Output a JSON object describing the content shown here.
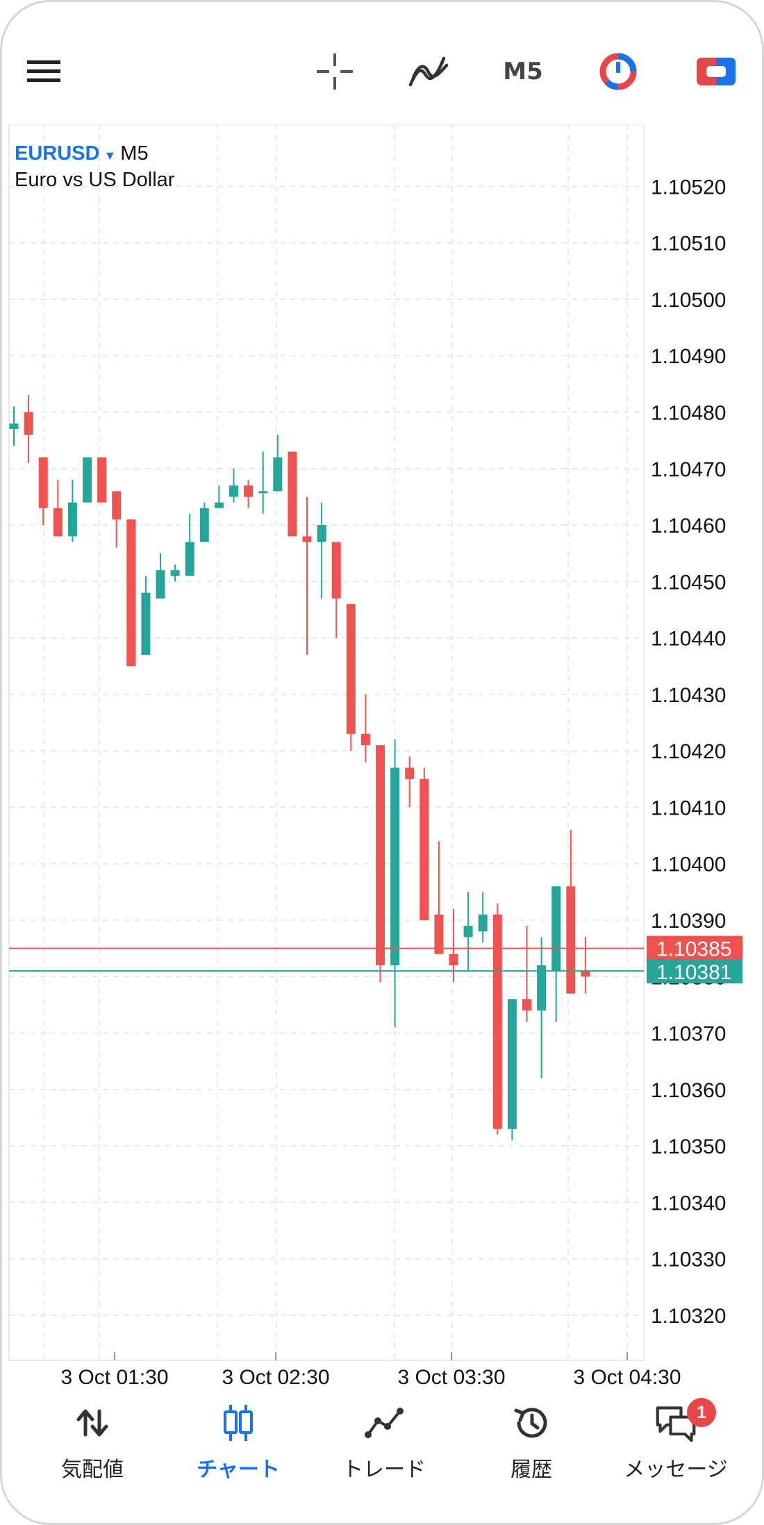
{
  "toolbar": {
    "menu_icon": "hamburger-menu-icon",
    "crosshair_icon": "crosshair-icon",
    "indicators_icon": "indicator-wave-icon",
    "timeframe": "M5",
    "timer_icon": "clock-pie-icon",
    "trade_icon": "one-click-trade-icon"
  },
  "chart": {
    "symbol": "EURUSD",
    "timeframe": "M5",
    "description": "Euro vs US Dollar",
    "ask_price": "1.10385",
    "bid_price": "1.10381",
    "colors": {
      "bull": "#26a69a",
      "bear": "#ef5350",
      "grid": "#e3e3e3"
    }
  },
  "chart_data": {
    "type": "candlestick",
    "ylim": [
      1.10312,
      1.10531
    ],
    "price_ticks": [
      "1.10520",
      "1.10510",
      "1.10500",
      "1.10490",
      "1.10480",
      "1.10470",
      "1.10460",
      "1.10450",
      "1.10440",
      "1.10430",
      "1.10420",
      "1.10410",
      "1.10400",
      "1.10390",
      "1.10380",
      "1.10370",
      "1.10360",
      "1.10350",
      "1.10340",
      "1.10330",
      "1.10320"
    ],
    "time_ticks": [
      "3 Oct 01:30",
      "3 Oct 02:30",
      "3 Oct 03:30",
      "3 Oct 04:30"
    ],
    "ask": 1.10385,
    "bid": 1.10381,
    "candles": [
      {
        "o": 1.10477,
        "h": 1.10481,
        "l": 1.10474,
        "c": 1.10478
      },
      {
        "o": 1.1048,
        "h": 1.10483,
        "l": 1.10471,
        "c": 1.10476
      },
      {
        "o": 1.10472,
        "h": 1.10472,
        "l": 1.1046,
        "c": 1.10463
      },
      {
        "o": 1.10463,
        "h": 1.10468,
        "l": 1.10458,
        "c": 1.10458
      },
      {
        "o": 1.10458,
        "h": 1.10468,
        "l": 1.10457,
        "c": 1.10464
      },
      {
        "o": 1.10464,
        "h": 1.10472,
        "l": 1.10464,
        "c": 1.10472
      },
      {
        "o": 1.10472,
        "h": 1.10472,
        "l": 1.10464,
        "c": 1.10464
      },
      {
        "o": 1.10466,
        "h": 1.10466,
        "l": 1.10456,
        "c": 1.10461
      },
      {
        "o": 1.10461,
        "h": 1.10461,
        "l": 1.10435,
        "c": 1.10435
      },
      {
        "o": 1.10437,
        "h": 1.10451,
        "l": 1.10437,
        "c": 1.10448
      },
      {
        "o": 1.10447,
        "h": 1.10455,
        "l": 1.10447,
        "c": 1.10452
      },
      {
        "o": 1.10451,
        "h": 1.10453,
        "l": 1.1045,
        "c": 1.10452
      },
      {
        "o": 1.10451,
        "h": 1.10462,
        "l": 1.10451,
        "c": 1.10457
      },
      {
        "o": 1.10457,
        "h": 1.10464,
        "l": 1.10457,
        "c": 1.10463
      },
      {
        "o": 1.10463,
        "h": 1.10467,
        "l": 1.10463,
        "c": 1.10464
      },
      {
        "o": 1.10465,
        "h": 1.1047,
        "l": 1.10464,
        "c": 1.10467
      },
      {
        "o": 1.10467,
        "h": 1.10468,
        "l": 1.10463,
        "c": 1.10465
      },
      {
        "o": 1.10466,
        "h": 1.10473,
        "l": 1.10462,
        "c": 1.10466
      },
      {
        "o": 1.10466,
        "h": 1.10476,
        "l": 1.10466,
        "c": 1.10472
      },
      {
        "o": 1.10473,
        "h": 1.10473,
        "l": 1.10458,
        "c": 1.10458
      },
      {
        "o": 1.10458,
        "h": 1.10465,
        "l": 1.10437,
        "c": 1.10457
      },
      {
        "o": 1.10457,
        "h": 1.10464,
        "l": 1.10447,
        "c": 1.1046
      },
      {
        "o": 1.10457,
        "h": 1.10457,
        "l": 1.1044,
        "c": 1.10447
      },
      {
        "o": 1.10446,
        "h": 1.10446,
        "l": 1.1042,
        "c": 1.10423
      },
      {
        "o": 1.10423,
        "h": 1.1043,
        "l": 1.10418,
        "c": 1.10421
      },
      {
        "o": 1.10421,
        "h": 1.10421,
        "l": 1.10379,
        "c": 1.10382
      },
      {
        "o": 1.10382,
        "h": 1.10422,
        "l": 1.10371,
        "c": 1.10417
      },
      {
        "o": 1.10417,
        "h": 1.10419,
        "l": 1.1041,
        "c": 1.10415
      },
      {
        "o": 1.10415,
        "h": 1.10417,
        "l": 1.1039,
        "c": 1.1039
      },
      {
        "o": 1.10391,
        "h": 1.10404,
        "l": 1.10384,
        "c": 1.10384
      },
      {
        "o": 1.10384,
        "h": 1.10392,
        "l": 1.10379,
        "c": 1.10382
      },
      {
        "o": 1.10387,
        "h": 1.10395,
        "l": 1.10381,
        "c": 1.10389
      },
      {
        "o": 1.10388,
        "h": 1.10395,
        "l": 1.10386,
        "c": 1.10391
      },
      {
        "o": 1.10391,
        "h": 1.10393,
        "l": 1.10352,
        "c": 1.10353
      },
      {
        "o": 1.10353,
        "h": 1.10376,
        "l": 1.10351,
        "c": 1.10376
      },
      {
        "o": 1.10376,
        "h": 1.10389,
        "l": 1.10372,
        "c": 1.10374
      },
      {
        "o": 1.10374,
        "h": 1.10387,
        "l": 1.10362,
        "c": 1.10382
      },
      {
        "o": 1.10381,
        "h": 1.10396,
        "l": 1.10372,
        "c": 1.10396
      },
      {
        "o": 1.10396,
        "h": 1.10406,
        "l": 1.10377,
        "c": 1.10377
      },
      {
        "o": 1.10381,
        "h": 1.10387,
        "l": 1.10377,
        "c": 1.1038
      }
    ]
  },
  "nav": {
    "quotes": "気配値",
    "chart": "チャート",
    "trade": "トレード",
    "history": "履歴",
    "messages": "メッセージ",
    "messages_badge": "1"
  }
}
